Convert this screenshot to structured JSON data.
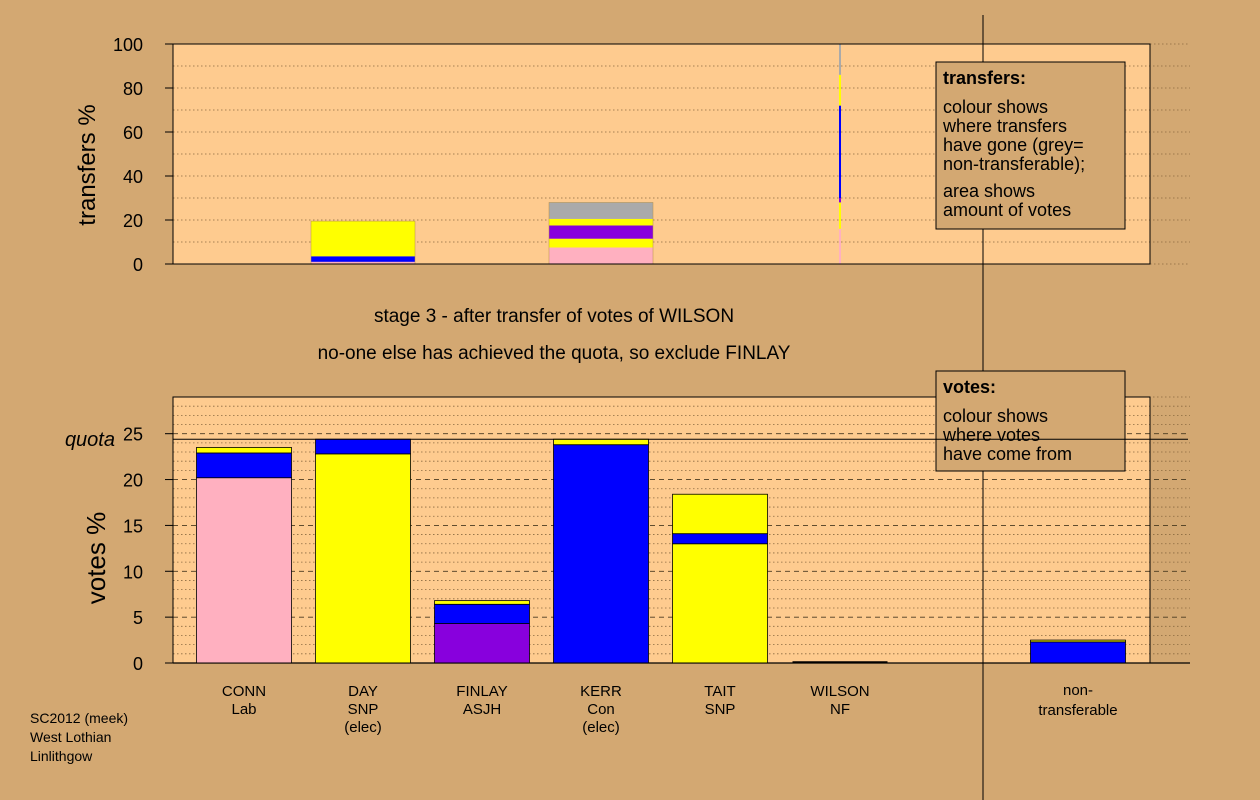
{
  "colors": {
    "background": "#d3a872",
    "plot_bg": "#fecb8f",
    "Lab": "#ffb0c0",
    "SNP": "#ffff00",
    "Con": "#0000ff",
    "ASJH": "#8800dd",
    "NF": "#ffffff",
    "grey": "#aaaaaa",
    "legend_bg": "#d3a872"
  },
  "stage_text": {
    "line1": "stage 3 - after transfer of votes of WILSON",
    "line2": "no-one else has achieved the quota, so exclude FINLAY"
  },
  "footer": {
    "line1": "SC2012 (meek)",
    "line2": "West Lothian",
    "line3": "Linlithgow"
  },
  "legend_transfers": {
    "title": "transfers:",
    "lines1": [
      "colour shows",
      "where transfers",
      "have gone (grey=",
      "non-transferable);"
    ],
    "lines2": [
      "area shows",
      "amount of votes"
    ]
  },
  "legend_votes": {
    "title": "votes:",
    "lines": [
      "colour shows",
      "where votes",
      "have come from"
    ]
  },
  "chart_data": [
    {
      "type": "bar",
      "ylabel": "transfers %",
      "ylim": [
        0,
        100
      ],
      "yticks": [
        0,
        20,
        40,
        60,
        80,
        100
      ],
      "bars": [
        {
          "candidate": "DAY",
          "width_pct": 0.65,
          "segments": [
            {
              "color": "Lab",
              "value": 1
            },
            {
              "color": "Con",
              "value": 2.5
            },
            {
              "color": "SNP",
              "value": 16
            }
          ]
        },
        {
          "candidate": "KERR",
          "width_pct": 0.65,
          "segments": [
            {
              "color": "Lab",
              "value": 7.5
            },
            {
              "color": "SNP",
              "value": 4
            },
            {
              "color": "ASJH",
              "value": 6
            },
            {
              "color": "SNP",
              "value": 3
            },
            {
              "color": "grey",
              "value": 7.5
            }
          ]
        },
        {
          "candidate": "WILSON",
          "width_pct": 0.01,
          "segments": [
            {
              "color": "Lab",
              "value": 16
            },
            {
              "color": "SNP",
              "value": 12
            },
            {
              "color": "ASJH",
              "value": 2
            },
            {
              "color": "Con",
              "value": 42
            },
            {
              "color": "SNP",
              "value": 14
            },
            {
              "color": "grey",
              "value": 14
            }
          ]
        }
      ]
    },
    {
      "type": "bar",
      "ylabel": "votes %",
      "ylim": [
        0,
        29
      ],
      "yticks": [
        0,
        5,
        10,
        15,
        20,
        25
      ],
      "quota": 24.4,
      "quota_label": "quota",
      "candidates": [
        {
          "name": "CONN",
          "party": "Lab",
          "note": "",
          "segments": [
            {
              "color": "Lab",
              "value": 20.2
            },
            {
              "color": "Con",
              "value": 2.7
            },
            {
              "color": "SNP",
              "value": 0.6
            }
          ]
        },
        {
          "name": "DAY",
          "party": "SNP",
          "note": "(elec)",
          "segments": [
            {
              "color": "SNP",
              "value": 22.8
            },
            {
              "color": "Con",
              "value": 1.6
            }
          ]
        },
        {
          "name": "FINLAY",
          "party": "ASJH",
          "note": "",
          "segments": [
            {
              "color": "ASJH",
              "value": 4.3
            },
            {
              "color": "Con",
              "value": 2.1
            },
            {
              "color": "SNP",
              "value": 0.4
            }
          ]
        },
        {
          "name": "KERR",
          "party": "Con",
          "note": "(elec)",
          "segments": [
            {
              "color": "Con",
              "value": 23.8
            },
            {
              "color": "SNP",
              "value": 0.6
            }
          ]
        },
        {
          "name": "TAIT",
          "party": "SNP",
          "note": "",
          "segments": [
            {
              "color": "SNP",
              "value": 13
            },
            {
              "color": "Con",
              "value": 1.1
            },
            {
              "color": "SNP",
              "value": 4.3
            }
          ]
        },
        {
          "name": "WILSON",
          "party": "NF",
          "note": "",
          "segments": []
        }
      ],
      "nontransferable": {
        "label1": "non-",
        "label2": "transferable",
        "segments": [
          {
            "color": "Con",
            "value": 2.3
          },
          {
            "color": "SNP",
            "value": 0.2
          }
        ]
      }
    }
  ]
}
